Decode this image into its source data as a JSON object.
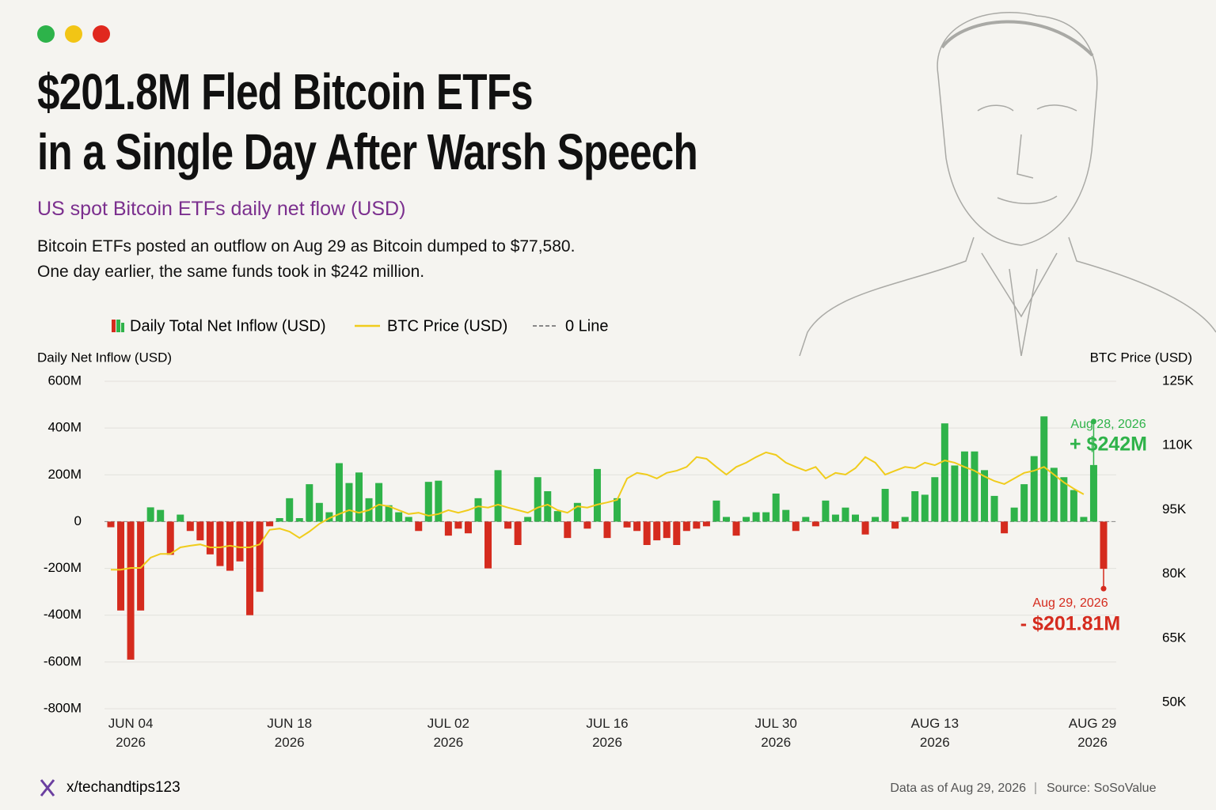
{
  "header": {
    "title": [
      "$201.8M Fled Bitcoin ETFs",
      "in a Single Day After Warsh Speech"
    ],
    "subtitle": "US spot Bitcoin ETFs daily net flow (USD)",
    "description": [
      "Bitcoin ETFs posted an outflow on Aug 29 as Bitcoin dumped to $77,580.",
      "One day earlier, the same funds took in $242 million."
    ]
  },
  "chart_data": {
    "type": "bar",
    "y_label": "Daily Net Inflow (USD)",
    "y2_label": "BTC Price (USD)",
    "categories": [
      null,
      null,
      "JUN 04 2026",
      null,
      null,
      null,
      null,
      null,
      null,
      null,
      null,
      null,
      null,
      null,
      null,
      null,
      null,
      null,
      "JUN 18 2026",
      null,
      null,
      null,
      null,
      null,
      null,
      null,
      null,
      null,
      null,
      null,
      null,
      null,
      null,
      null,
      "JUL 02 2026",
      null,
      null,
      null,
      null,
      null,
      null,
      null,
      null,
      null,
      null,
      null,
      null,
      null,
      null,
      null,
      "JUL 16 2026",
      null,
      null,
      null,
      null,
      null,
      null,
      null,
      null,
      null,
      null,
      null,
      null,
      null,
      null,
      null,
      null,
      "JUL 30 2026",
      null,
      null,
      null,
      null,
      null,
      null,
      null,
      null,
      null,
      null,
      null,
      null,
      null,
      null,
      null,
      "AUG 13 2026",
      null,
      null,
      null,
      null,
      null,
      null,
      null,
      null,
      null,
      null,
      null,
      null,
      null,
      null,
      null,
      null,
      "AUG 29 2026"
    ],
    "series": [
      {
        "name": "Daily Total Net Inflow (USD)",
        "color": "#2fb34a",
        "negative_color": "#d52b1e",
        "values": [
          -24,
          -380,
          -590,
          -380,
          61,
          50,
          -142,
          30,
          -40,
          -80,
          -140,
          -190,
          -210,
          -170,
          -400,
          -300,
          -20,
          15,
          100,
          15,
          160,
          80,
          40,
          250,
          165,
          210,
          100,
          165,
          70,
          40,
          20,
          -40,
          170,
          175,
          -60,
          -30,
          -50,
          100,
          -200,
          220,
          -30,
          -100,
          20,
          190,
          130,
          45,
          -70,
          80,
          -30,
          225,
          -70,
          100,
          -25,
          -40,
          -100,
          -80,
          -70,
          -100,
          -40,
          -30,
          -20,
          90,
          20,
          -60,
          20,
          40,
          40,
          120,
          50,
          -40,
          20,
          -20,
          90,
          30,
          60,
          30,
          -55,
          20,
          140,
          -30,
          20,
          130,
          115,
          190,
          420,
          240,
          300,
          300,
          220,
          110,
          -50,
          60,
          160,
          280,
          450,
          230,
          190,
          135,
          20,
          242,
          -201.81
        ],
        "value_labels": [
          null,
          null,
          null,
          null,
          null,
          null,
          null,
          null,
          null,
          null,
          null,
          null,
          null,
          null,
          null,
          null,
          null,
          null,
          null,
          null,
          null,
          null,
          null,
          null,
          null,
          null,
          null,
          null,
          null,
          null,
          null,
          null,
          null,
          null,
          null,
          null,
          null,
          null,
          null,
          null,
          null,
          null,
          null,
          null,
          null,
          null,
          null,
          null,
          null,
          null,
          null,
          null,
          null,
          null,
          null,
          null,
          null,
          null,
          null,
          null,
          null,
          null,
          null,
          null,
          null,
          null,
          null,
          null,
          null,
          null,
          null,
          null,
          null,
          null,
          null,
          null,
          null,
          null,
          null,
          null,
          null,
          null,
          null,
          null,
          null,
          null,
          null,
          null,
          null,
          null,
          null,
          null,
          null,
          null,
          null,
          null,
          null,
          null,
          null,
          "+ $242M",
          "- $201.81M"
        ]
      },
      {
        "name": "BTC Price (USD)",
        "color": "#f0cc1c",
        "axis": "y2",
        "type": "line",
        "values": [
          81000,
          81000,
          81400,
          81400,
          83800,
          84700,
          84700,
          86200,
          86600,
          86900,
          86200,
          86200,
          86600,
          86200,
          86200,
          86900,
          90300,
          90600,
          89900,
          88400,
          89900,
          91700,
          93000,
          94000,
          94900,
          94300,
          94900,
          96200,
          95800,
          94900,
          94000,
          94300,
          93600,
          94000,
          94900,
          94300,
          94900,
          95800,
          95500,
          96200,
          95500,
          94900,
          94300,
          95500,
          96200,
          94900,
          94300,
          95800,
          95500,
          96200,
          96700,
          97300,
          102300,
          103600,
          103200,
          102300,
          103600,
          104100,
          105000,
          107300,
          106900,
          105000,
          103200,
          105000,
          106000,
          107300,
          108400,
          107800,
          106000,
          105000,
          104100,
          105000,
          102300,
          103600,
          103200,
          104700,
          107300,
          106000,
          103200,
          104100,
          105000,
          104700,
          106000,
          105400,
          106500,
          106000,
          105000,
          104100,
          102800,
          101700,
          101000,
          102300,
          103600,
          104100,
          105000,
          103200,
          101400,
          99900,
          98600,
          null,
          null
        ]
      }
    ],
    "zero_line": {
      "name": "0 Line",
      "value": 0,
      "color": "#888888"
    },
    "annotations": [
      "Aug 28, 2026",
      "Aug 29, 2026"
    ],
    "ylim": [
      -800,
      600
    ],
    "yticks": [
      {
        "value": 600,
        "label": "600M"
      },
      {
        "value": 400,
        "label": "400M"
      },
      {
        "value": 200,
        "label": "200M"
      },
      0,
      {
        "value": -200,
        "label": "-200M"
      },
      {
        "value": -400,
        "label": "-400M"
      },
      {
        "value": -600,
        "label": "-600M"
      },
      {
        "value": -800,
        "label": "-800M"
      }
    ],
    "y2lim": [
      50000,
      125000
    ],
    "y2ticks": [
      {
        "value": 125000,
        "label": "125K"
      },
      {
        "value": 110000,
        "label": "110K"
      },
      {
        "value": 95000,
        "label": "95K"
      },
      {
        "value": 80000,
        "label": "80K"
      },
      {
        "value": 65000,
        "label": "65K"
      },
      {
        "value": 50000,
        "label": "50K"
      }
    ],
    "grid": true
  },
  "footer": {
    "handle": "x/techandtips123",
    "data_note": "Data as of Aug 29, 2026",
    "source": "Source: SoSoValue"
  }
}
